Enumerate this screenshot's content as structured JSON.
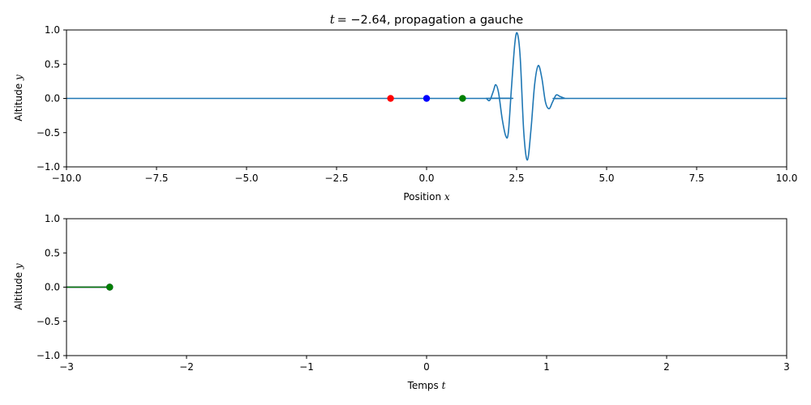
{
  "chart_data": [
    {
      "type": "line",
      "title_prefix": "t",
      "title_value": "= −2.64, propagation a gauche",
      "xlabel_text": "Position ",
      "xlabel_var": "x",
      "ylabel_text": "Altitude ",
      "ylabel_var": "y",
      "xlim": [
        -10,
        10
      ],
      "ylim": [
        -1,
        1
      ],
      "xticks": [
        -10,
        -7.5,
        -5,
        -2.5,
        0,
        2.5,
        5,
        7.5,
        10
      ],
      "xtick_labels": [
        "−10.0",
        "−7.5",
        "−5.0",
        "−2.5",
        "0.0",
        "2.5",
        "5.0",
        "7.5",
        "10.0"
      ],
      "yticks": [
        -1,
        -0.5,
        0,
        0.5,
        1
      ],
      "ytick_labels": [
        "−1.0",
        "−0.5",
        "0.0",
        "0.5",
        "1.0"
      ],
      "grid": false,
      "series": [
        {
          "color": "#1f77b4",
          "x": [
            -10,
            1.5,
            1.65,
            1.75,
            1.85,
            1.92,
            2.0,
            2.1,
            2.2,
            2.27,
            2.35,
            2.45,
            2.52,
            2.6,
            2.7,
            2.8,
            2.9,
            3.0,
            3.1,
            3.2,
            3.3,
            3.4,
            3.5,
            3.6,
            3.7,
            3.85,
            4.0,
            10
          ],
          "y": [
            0,
            0,
            0,
            -0.03,
            0.1,
            0.2,
            0.08,
            -0.3,
            -0.55,
            -0.5,
            0.1,
            0.8,
            0.95,
            0.6,
            -0.5,
            -0.9,
            -0.45,
            0.2,
            0.48,
            0.3,
            -0.05,
            -0.15,
            -0.05,
            0.05,
            0.03,
            0,
            0,
            0
          ]
        }
      ],
      "markers": [
        {
          "x": -1,
          "y": 0,
          "color": "#ff0000"
        },
        {
          "x": 0,
          "y": 0,
          "color": "#0000ff"
        },
        {
          "x": 1,
          "y": 0,
          "color": "#008000"
        }
      ]
    },
    {
      "type": "line",
      "xlabel_text": "Temps ",
      "xlabel_var": "t",
      "ylabel_text": "Altitude ",
      "ylabel_var": "y",
      "xlim": [
        -3,
        3
      ],
      "ylim": [
        -1,
        1
      ],
      "xticks": [
        -3,
        -2,
        -1,
        0,
        1,
        2,
        3
      ],
      "xtick_labels": [
        "−3",
        "−2",
        "−1",
        "0",
        "1",
        "2",
        "3"
      ],
      "yticks": [
        -1,
        -0.5,
        0,
        0.5,
        1
      ],
      "ytick_labels": [
        "−1.0",
        "−0.5",
        "0.0",
        "0.5",
        "1.0"
      ],
      "grid": false,
      "series": [
        {
          "color": "#ff0000",
          "x": [
            -3,
            -2.64
          ],
          "y": [
            0,
            0
          ]
        },
        {
          "color": "#0000ff",
          "x": [
            -3,
            -2.64
          ],
          "y": [
            0,
            0
          ]
        },
        {
          "color": "#008000",
          "x": [
            -3,
            -2.64
          ],
          "y": [
            0,
            0
          ]
        }
      ],
      "markers": [
        {
          "x": -2.64,
          "y": 0,
          "color": "#ff0000"
        },
        {
          "x": -2.64,
          "y": 0,
          "color": "#0000ff"
        },
        {
          "x": -2.64,
          "y": 0,
          "color": "#008000"
        }
      ]
    }
  ]
}
